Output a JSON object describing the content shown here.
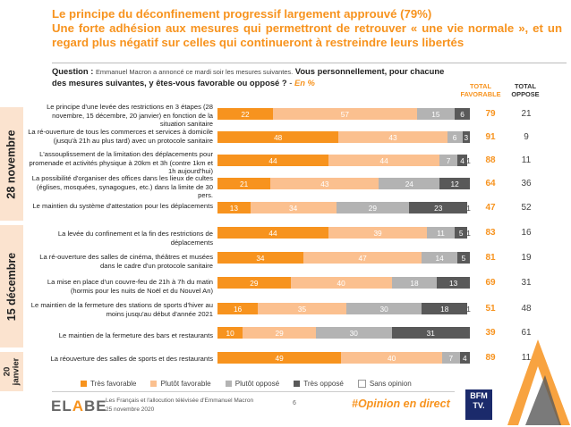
{
  "title": {
    "line1": "Le principe du déconfinement progressif largement approuvé (79%)",
    "line2": "Une forte adhésion aux mesures qui permettront de retrouver « une vie normale », et un regard plus négatif sur celles qui continueront à restreindre leurs libertés"
  },
  "question": {
    "label": "Question :",
    "intro": "Emmanuel Macron a annoncé ce mardi soir les mesures suivantes.",
    "prompt": "Vous personnellement, pour chacune des mesures suivantes, y êtes-vous favorable ou opposé ?",
    "dash": " - ",
    "unit": "En %"
  },
  "columns": {
    "fav": "TOTAL FAVORABLE",
    "opp": "TOTAL OPPOSE"
  },
  "groups": [
    {
      "label": "28 novembre"
    },
    {
      "label": "15 décembre"
    },
    {
      "label": "20 janvier"
    }
  ],
  "colors": {
    "tres_favorable": "#f7931e",
    "plutot_favorable": "#fbc08f",
    "plutot_oppose": "#b3b3b3",
    "tres_oppose": "#595959",
    "sans_opinion": "#ffffff",
    "accent": "#f7931e"
  },
  "chart_data": {
    "type": "bar",
    "orientation": "horizontal",
    "stacked": true,
    "unit": "En %",
    "categories": [
      "Le principe d'une levée des restrictions en 3 étapes (28 novembre, 15 décembre, 20 janvier) en fonction de la situation sanitaire",
      "La ré-ouverture de tous les commerces et services à domicile (jusqu'à 21h au plus tard) avec un protocole sanitaire",
      "L'assouplissement de la limitation des déplacements pour promenade et activités physique à 20km et 3h (contre 1km et 1h aujourd'hui)",
      "La possibilité d'organiser des offices dans les lieux de cultes (églises, mosquées, synagogues, etc.) dans la limite de 30 pers.",
      "Le maintien du système d'attestation pour les déplacements",
      "La levée du confinement et la fin des restrictions de déplacements",
      "La ré-ouverture des salles de cinéma, théâtres et musées dans le cadre d'un protocole sanitaire",
      "La mise en place d'un couvre-feu de 21h à 7h du matin (hormis pour les nuits de Noël et du Nouvel An)",
      "Le maintien de la fermeture des stations de sports d'hiver au moins jusqu'au début d'année 2021",
      "Le maintien de la fermeture des bars et restaurants",
      "La réouverture des salles de sports et des restaurants"
    ],
    "series": [
      {
        "name": "Très favorable",
        "values": [
          22,
          48,
          44,
          21,
          13,
          44,
          34,
          29,
          16,
          10,
          49
        ]
      },
      {
        "name": "Plutôt favorable",
        "values": [
          57,
          43,
          44,
          43,
          34,
          39,
          47,
          40,
          35,
          29,
          40
        ]
      },
      {
        "name": "Plutôt opposé",
        "values": [
          15,
          6,
          7,
          24,
          29,
          11,
          14,
          18,
          30,
          30,
          7
        ]
      },
      {
        "name": "Très opposé",
        "values": [
          6,
          3,
          4,
          12,
          23,
          5,
          5,
          13,
          18,
          31,
          4
        ]
      },
      {
        "name": "Sans opinion",
        "values": [
          0,
          0,
          1,
          0,
          1,
          1,
          0,
          0,
          1,
          0,
          0
        ]
      }
    ],
    "total_favorable": [
      79,
      91,
      88,
      64,
      47,
      83,
      81,
      69,
      51,
      39,
      89
    ],
    "total_oppose": [
      21,
      9,
      11,
      36,
      52,
      16,
      19,
      31,
      48,
      61,
      11
    ],
    "xlim": [
      0,
      100
    ],
    "grid": false,
    "legend_position": "bottom"
  },
  "footer": {
    "logo_a": "EL",
    "logo_b": "A",
    "logo_c": "BE",
    "source_line1": "Les Français et l'allocution télévisée d'Emmanuel Macron",
    "source_line2": "25 novembre 2020",
    "page": "6",
    "hashtag": "#Opinion en direct",
    "partner_line1": "BFM",
    "partner_line2": "TV."
  }
}
